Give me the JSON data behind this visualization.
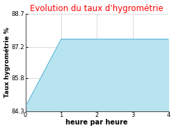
{
  "title": "Evolution du taux d'hygrométrie",
  "title_color": "#ff0000",
  "xlabel": "heure par heure",
  "ylabel": "Taux hygrométrie %",
  "x": [
    0,
    1,
    4
  ],
  "y": [
    84.5,
    87.55,
    87.55
  ],
  "fill_color": "#b8e4f0",
  "line_color": "#5ab4d6",
  "line_width": 0.8,
  "ylim": [
    84.3,
    88.7
  ],
  "xlim": [
    0,
    4
  ],
  "yticks": [
    84.3,
    85.8,
    87.2,
    88.7
  ],
  "xticks": [
    0,
    1,
    2,
    3,
    4
  ],
  "bg_color": "#ffffff",
  "plot_bg_color": "#ffffff",
  "grid_color": "#cccccc",
  "title_fontsize": 8.5,
  "axis_label_fontsize": 7,
  "tick_fontsize": 6,
  "ylabel_fontsize": 6.5
}
